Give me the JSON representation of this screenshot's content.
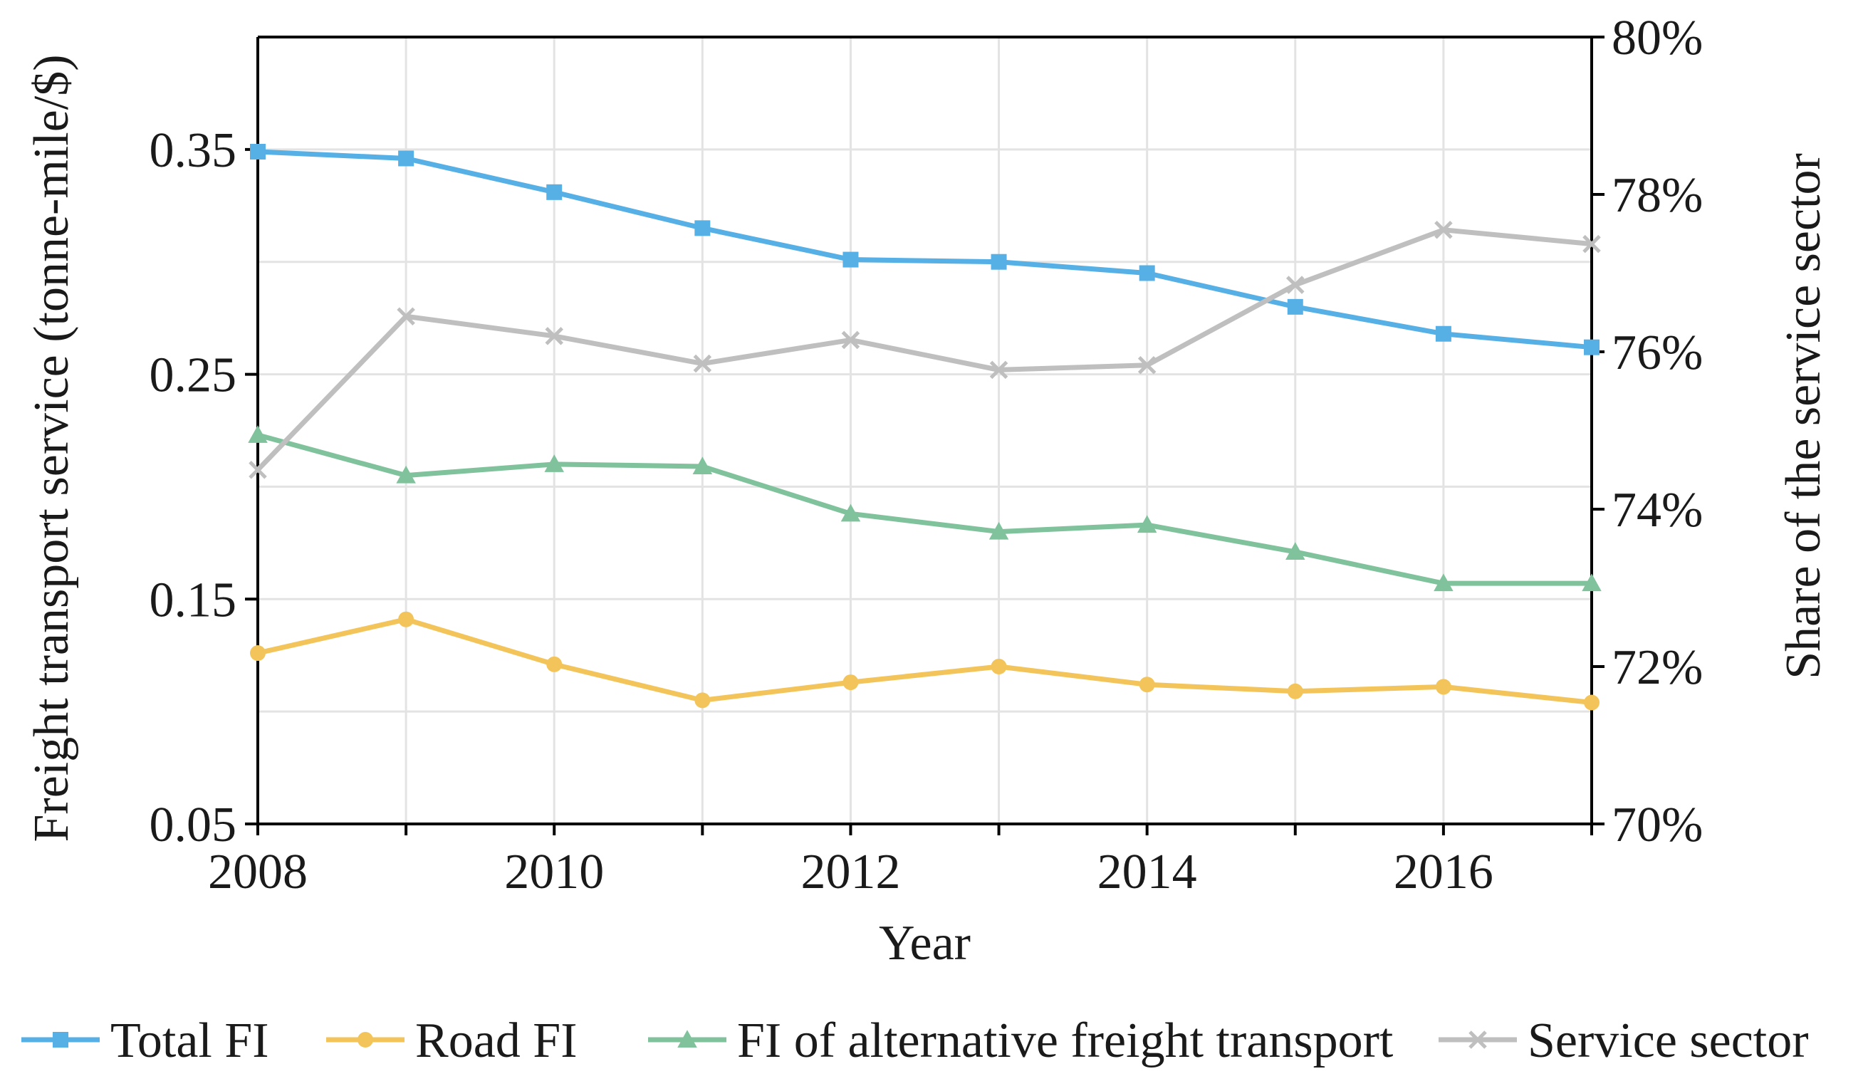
{
  "chart_data": {
    "type": "line",
    "x": [
      2008,
      2009,
      2010,
      2011,
      2012,
      2013,
      2014,
      2015,
      2016,
      2017
    ],
    "x_ticks": [
      "2008",
      "2010",
      "2012",
      "2014",
      "2016"
    ],
    "xlim": [
      2008,
      2017
    ],
    "xlabel": "Year",
    "ylabel": "Freight transport service (tonne-mile/$)",
    "ylim": [
      0.05,
      0.4
    ],
    "y_ticks": [
      "0.05",
      "0.15",
      "0.25",
      "0.35"
    ],
    "y2label": "Share of the service sector",
    "y2lim": [
      70,
      80
    ],
    "y2_ticks": [
      "70%",
      "72%",
      "74%",
      "76%",
      "78%",
      "80%"
    ],
    "grid": true,
    "legend_position": "bottom",
    "series": [
      {
        "name": "Total FI",
        "axis": "left",
        "marker": "square",
        "color": "#56b0e6",
        "values": [
          0.349,
          0.346,
          0.331,
          0.315,
          0.301,
          0.3,
          0.295,
          0.28,
          0.268,
          0.262
        ]
      },
      {
        "name": "Road FI",
        "axis": "left",
        "marker": "circle",
        "color": "#f3c45a",
        "values": [
          0.126,
          0.141,
          0.121,
          0.105,
          0.113,
          0.12,
          0.112,
          0.109,
          0.111,
          0.104
        ]
      },
      {
        "name": "FI of alternative freight transport",
        "axis": "left",
        "marker": "triangle",
        "color": "#7fc29c",
        "values": [
          0.223,
          0.205,
          0.21,
          0.209,
          0.188,
          0.18,
          0.183,
          0.171,
          0.157,
          0.157
        ]
      },
      {
        "name": "Service sector",
        "axis": "right",
        "marker": "x",
        "color": "#bfbfbf",
        "values": [
          74.5,
          76.45,
          76.2,
          75.85,
          76.15,
          75.77,
          75.83,
          76.85,
          77.55,
          77.37
        ]
      }
    ]
  }
}
